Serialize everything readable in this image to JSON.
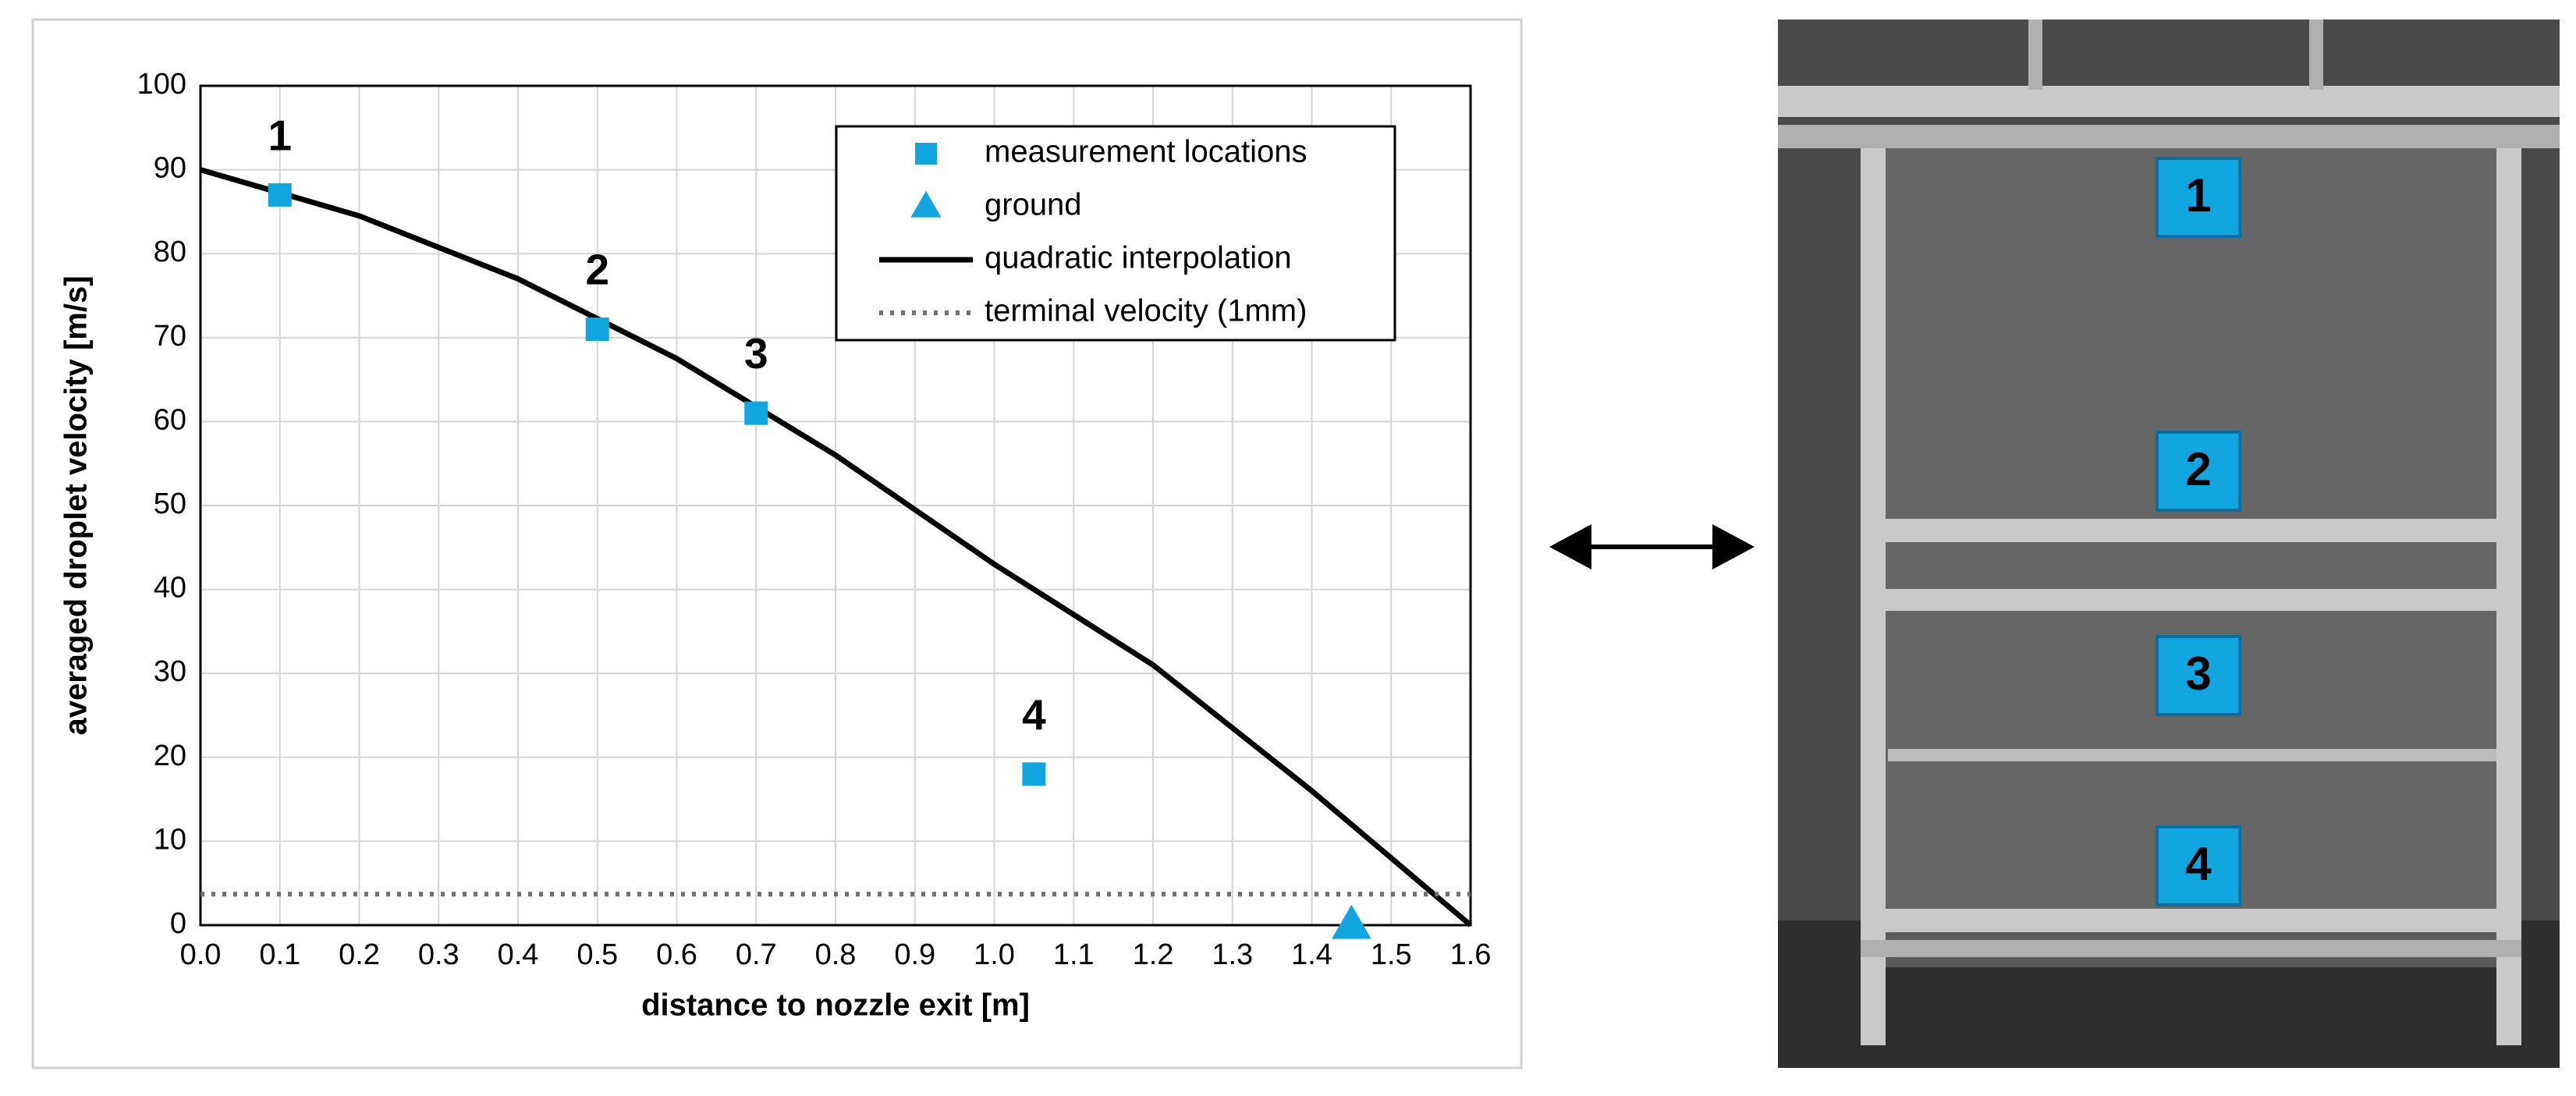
{
  "chart_data": {
    "type": "line",
    "xlabel": "distance to nozzle exit [m]",
    "ylabel": "averaged droplet velocity [m/s]",
    "xlim": [
      0,
      1.6
    ],
    "ylim": [
      0,
      100
    ],
    "xticks": [
      {
        "value": 0,
        "label": "0.0"
      },
      0.1,
      0.2,
      0.3,
      0.4,
      0.5,
      0.6,
      0.7,
      0.8,
      0.9,
      {
        "value": 1,
        "label": "1.0"
      },
      1.1,
      1.2,
      1.3,
      1.4,
      1.5,
      1.6
    ],
    "yticks": [
      0,
      10,
      20,
      30,
      40,
      50,
      60,
      70,
      80,
      90,
      100
    ],
    "grid": true,
    "legend": "upper right",
    "series": [
      {
        "name": "measurement locations",
        "color": "#12a6e0",
        "style": "square",
        "x": [
          0.1,
          0.5,
          0.7,
          1.05
        ],
        "values": [
          87,
          71,
          61,
          18
        ],
        "point_labels": [
          "1",
          "2",
          "3",
          "4"
        ]
      },
      {
        "name": "ground",
        "color": "#12a6e0",
        "style": "triangle",
        "x": [
          1.45
        ],
        "values": [
          0
        ]
      },
      {
        "name": "quadratic interpolation",
        "color": "#000000",
        "style": "solid",
        "x": [
          0,
          0.2,
          0.4,
          0.6,
          0.8,
          1.0,
          1.2,
          1.4,
          1.6
        ],
        "values": [
          90,
          84.5,
          77,
          67.5,
          56,
          43,
          31,
          16,
          0
        ]
      },
      {
        "name": "terminal velocity (1mm)",
        "color": "#707070",
        "style": "dotted",
        "x": [
          0,
          1.6
        ],
        "values": [
          3.7,
          3.7
        ]
      }
    ]
  },
  "photo": {
    "labels": [
      "1",
      "2",
      "3",
      "4"
    ]
  }
}
